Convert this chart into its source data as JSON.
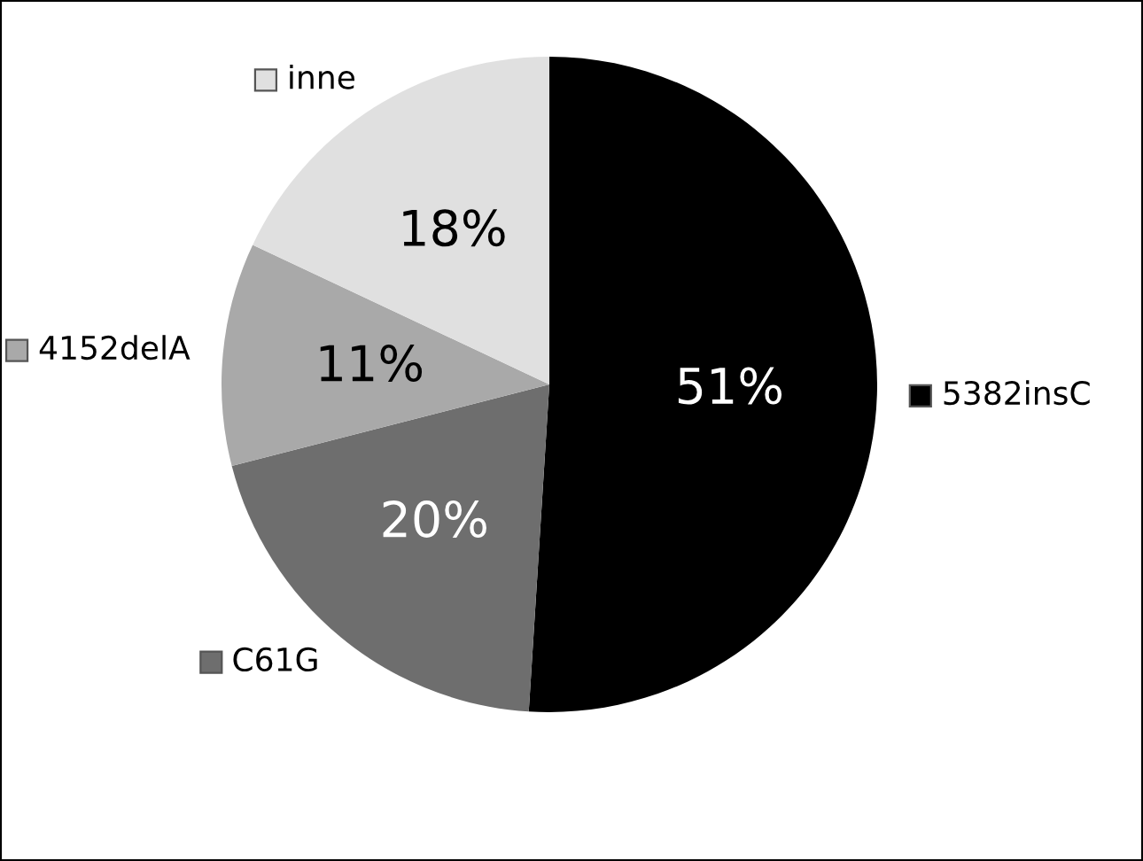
{
  "chart_data": {
    "type": "pie",
    "categories": [
      "5382insC",
      "C61G",
      "4152delA",
      "inne"
    ],
    "values": [
      51,
      20,
      11,
      18
    ],
    "colors": [
      "#000000",
      "#6e6e6e",
      "#a9a9a9",
      "#e0e0e0"
    ],
    "value_labels": [
      "51%",
      "20%",
      "11%",
      "18%"
    ],
    "legend": "left"
  }
}
